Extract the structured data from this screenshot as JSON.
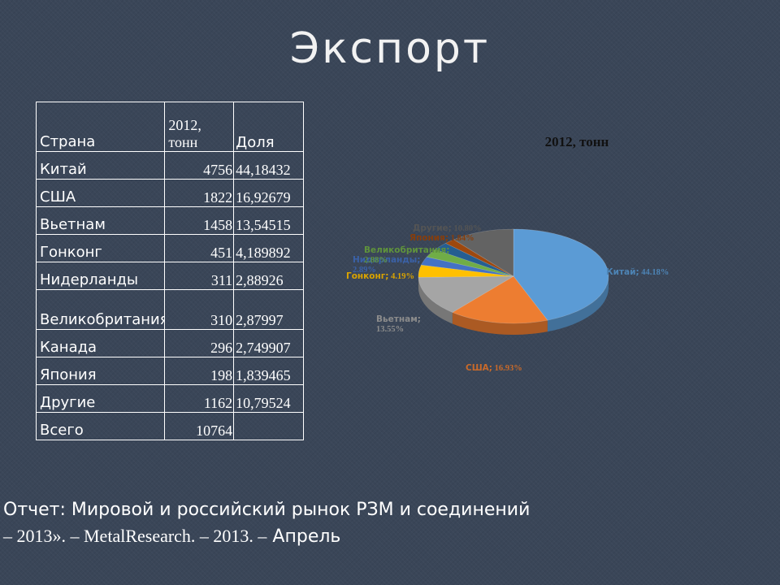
{
  "title": "Экспорт",
  "table": {
    "headers": [
      "Страна",
      "2012, тонн",
      "Доля"
    ],
    "rows": [
      [
        "Китай",
        "4756",
        "44,18432"
      ],
      [
        "США",
        "1822",
        "16,92679"
      ],
      [
        "Вьетнам",
        "1458",
        "13,54515"
      ],
      [
        "Гонконг",
        "451",
        "4,189892"
      ],
      [
        "Нидерланды",
        "311",
        "2,88926"
      ],
      [
        "Великобритания",
        "310",
        "2,87997"
      ],
      [
        "Канада",
        "296",
        "2,749907"
      ],
      [
        "Япония",
        "198",
        "1,839465"
      ],
      [
        "Другие",
        "1162",
        "10,79524"
      ],
      [
        "Всего",
        "10764",
        ""
      ]
    ]
  },
  "chart_data": {
    "type": "pie",
    "title": "2012, тонн",
    "slices": [
      {
        "name": "Китай",
        "value": 44.18,
        "label": "Китай; 44.18%",
        "color": "#5b9bd5"
      },
      {
        "name": "США",
        "value": 16.93,
        "label": "США; 16.93%",
        "color": "#ed7d31"
      },
      {
        "name": "Вьетнам",
        "value": 13.55,
        "label": "Вьетнам; 13.55%",
        "color": "#a5a5a5"
      },
      {
        "name": "Гонконг",
        "value": 4.19,
        "label": "Гонконг; 4.19%",
        "color": "#ffc000"
      },
      {
        "name": "Нидерланды",
        "value": 2.89,
        "label": "Нидерланды; 2.89%",
        "color": "#4472c4"
      },
      {
        "name": "Великобритания",
        "value": 2.88,
        "label": "Великобритания; 2.88%",
        "color": "#70ad47"
      },
      {
        "name": "Канада",
        "value": 2.75,
        "label": "",
        "color": "#255e91"
      },
      {
        "name": "Япония",
        "value": 1.84,
        "label": "Япония; 1.84%",
        "color": "#9e480e"
      },
      {
        "name": "Другие",
        "value": 10.8,
        "label": "Другие; 10.80%",
        "color": "#636363"
      }
    ]
  },
  "footer": {
    "line1": "Отчет: Мировой и российский рынок РЗМ и соединений",
    "line2_a": "– 2013». – MetalResearch. – 2013. –",
    "line2_b": " Апрель"
  }
}
